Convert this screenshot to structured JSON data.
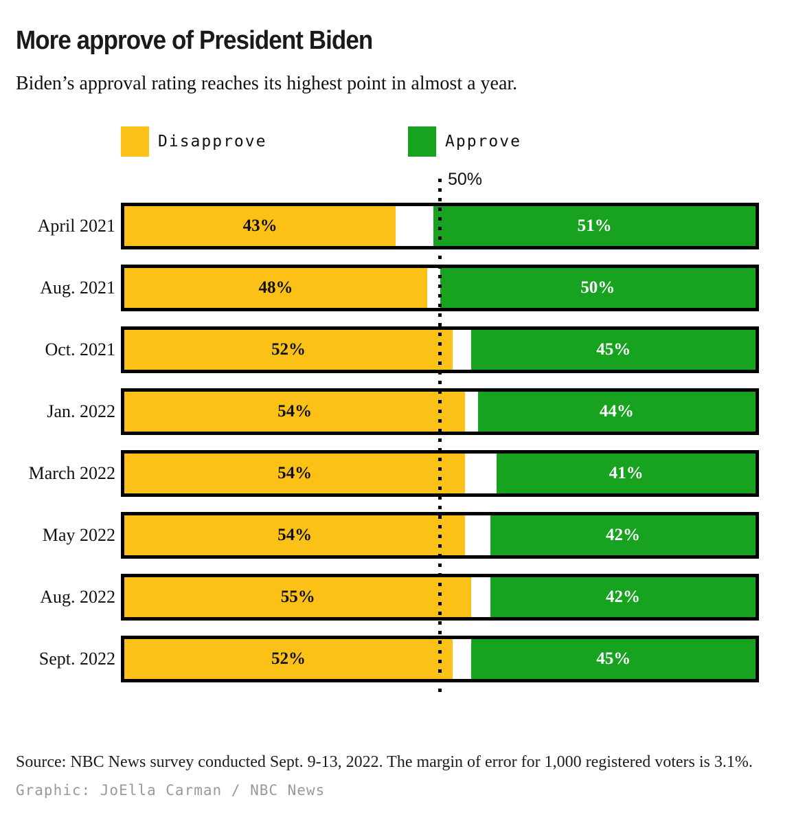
{
  "header": {
    "title": "More approve of President Biden",
    "subtitle": "Biden’s approval rating reaches its highest point in almost a year."
  },
  "chart_data": {
    "type": "bar",
    "orientation": "horizontal-diverging",
    "title": "More approve of President Biden",
    "subtitle": "Biden’s approval rating reaches its highest point in almost a year.",
    "categories": [
      "April 2021",
      "Aug. 2021",
      "Oct. 2021",
      "Jan. 2022",
      "March 2022",
      "May 2022",
      "Aug. 2022",
      "Sept. 2022"
    ],
    "series": [
      {
        "name": "Disapprove",
        "color": "#FBC116",
        "values": [
          43,
          48,
          52,
          54,
          54,
          54,
          55,
          52
        ]
      },
      {
        "name": "Approve",
        "color": "#17A220",
        "values": [
          51,
          50,
          45,
          44,
          41,
          42,
          42,
          45
        ]
      }
    ],
    "value_suffix": "%",
    "xlim": [
      0,
      100
    ],
    "reference_line": {
      "value": 50,
      "label": "50%"
    },
    "legend_position": "top",
    "grid": false
  },
  "legend": {
    "disapprove_label": "Disapprove",
    "approve_label": "Approve"
  },
  "colors": {
    "disapprove": "#FBC116",
    "approve": "#17A220",
    "bar_border": "#000000",
    "credit_gray": "#999999"
  },
  "footer": {
    "source": "Source: NBC News survey conducted Sept. 9-13, 2022. The margin of error for 1,000 registered voters is 3.1%.",
    "credit": "Graphic: JoElla Carman / NBC News"
  }
}
